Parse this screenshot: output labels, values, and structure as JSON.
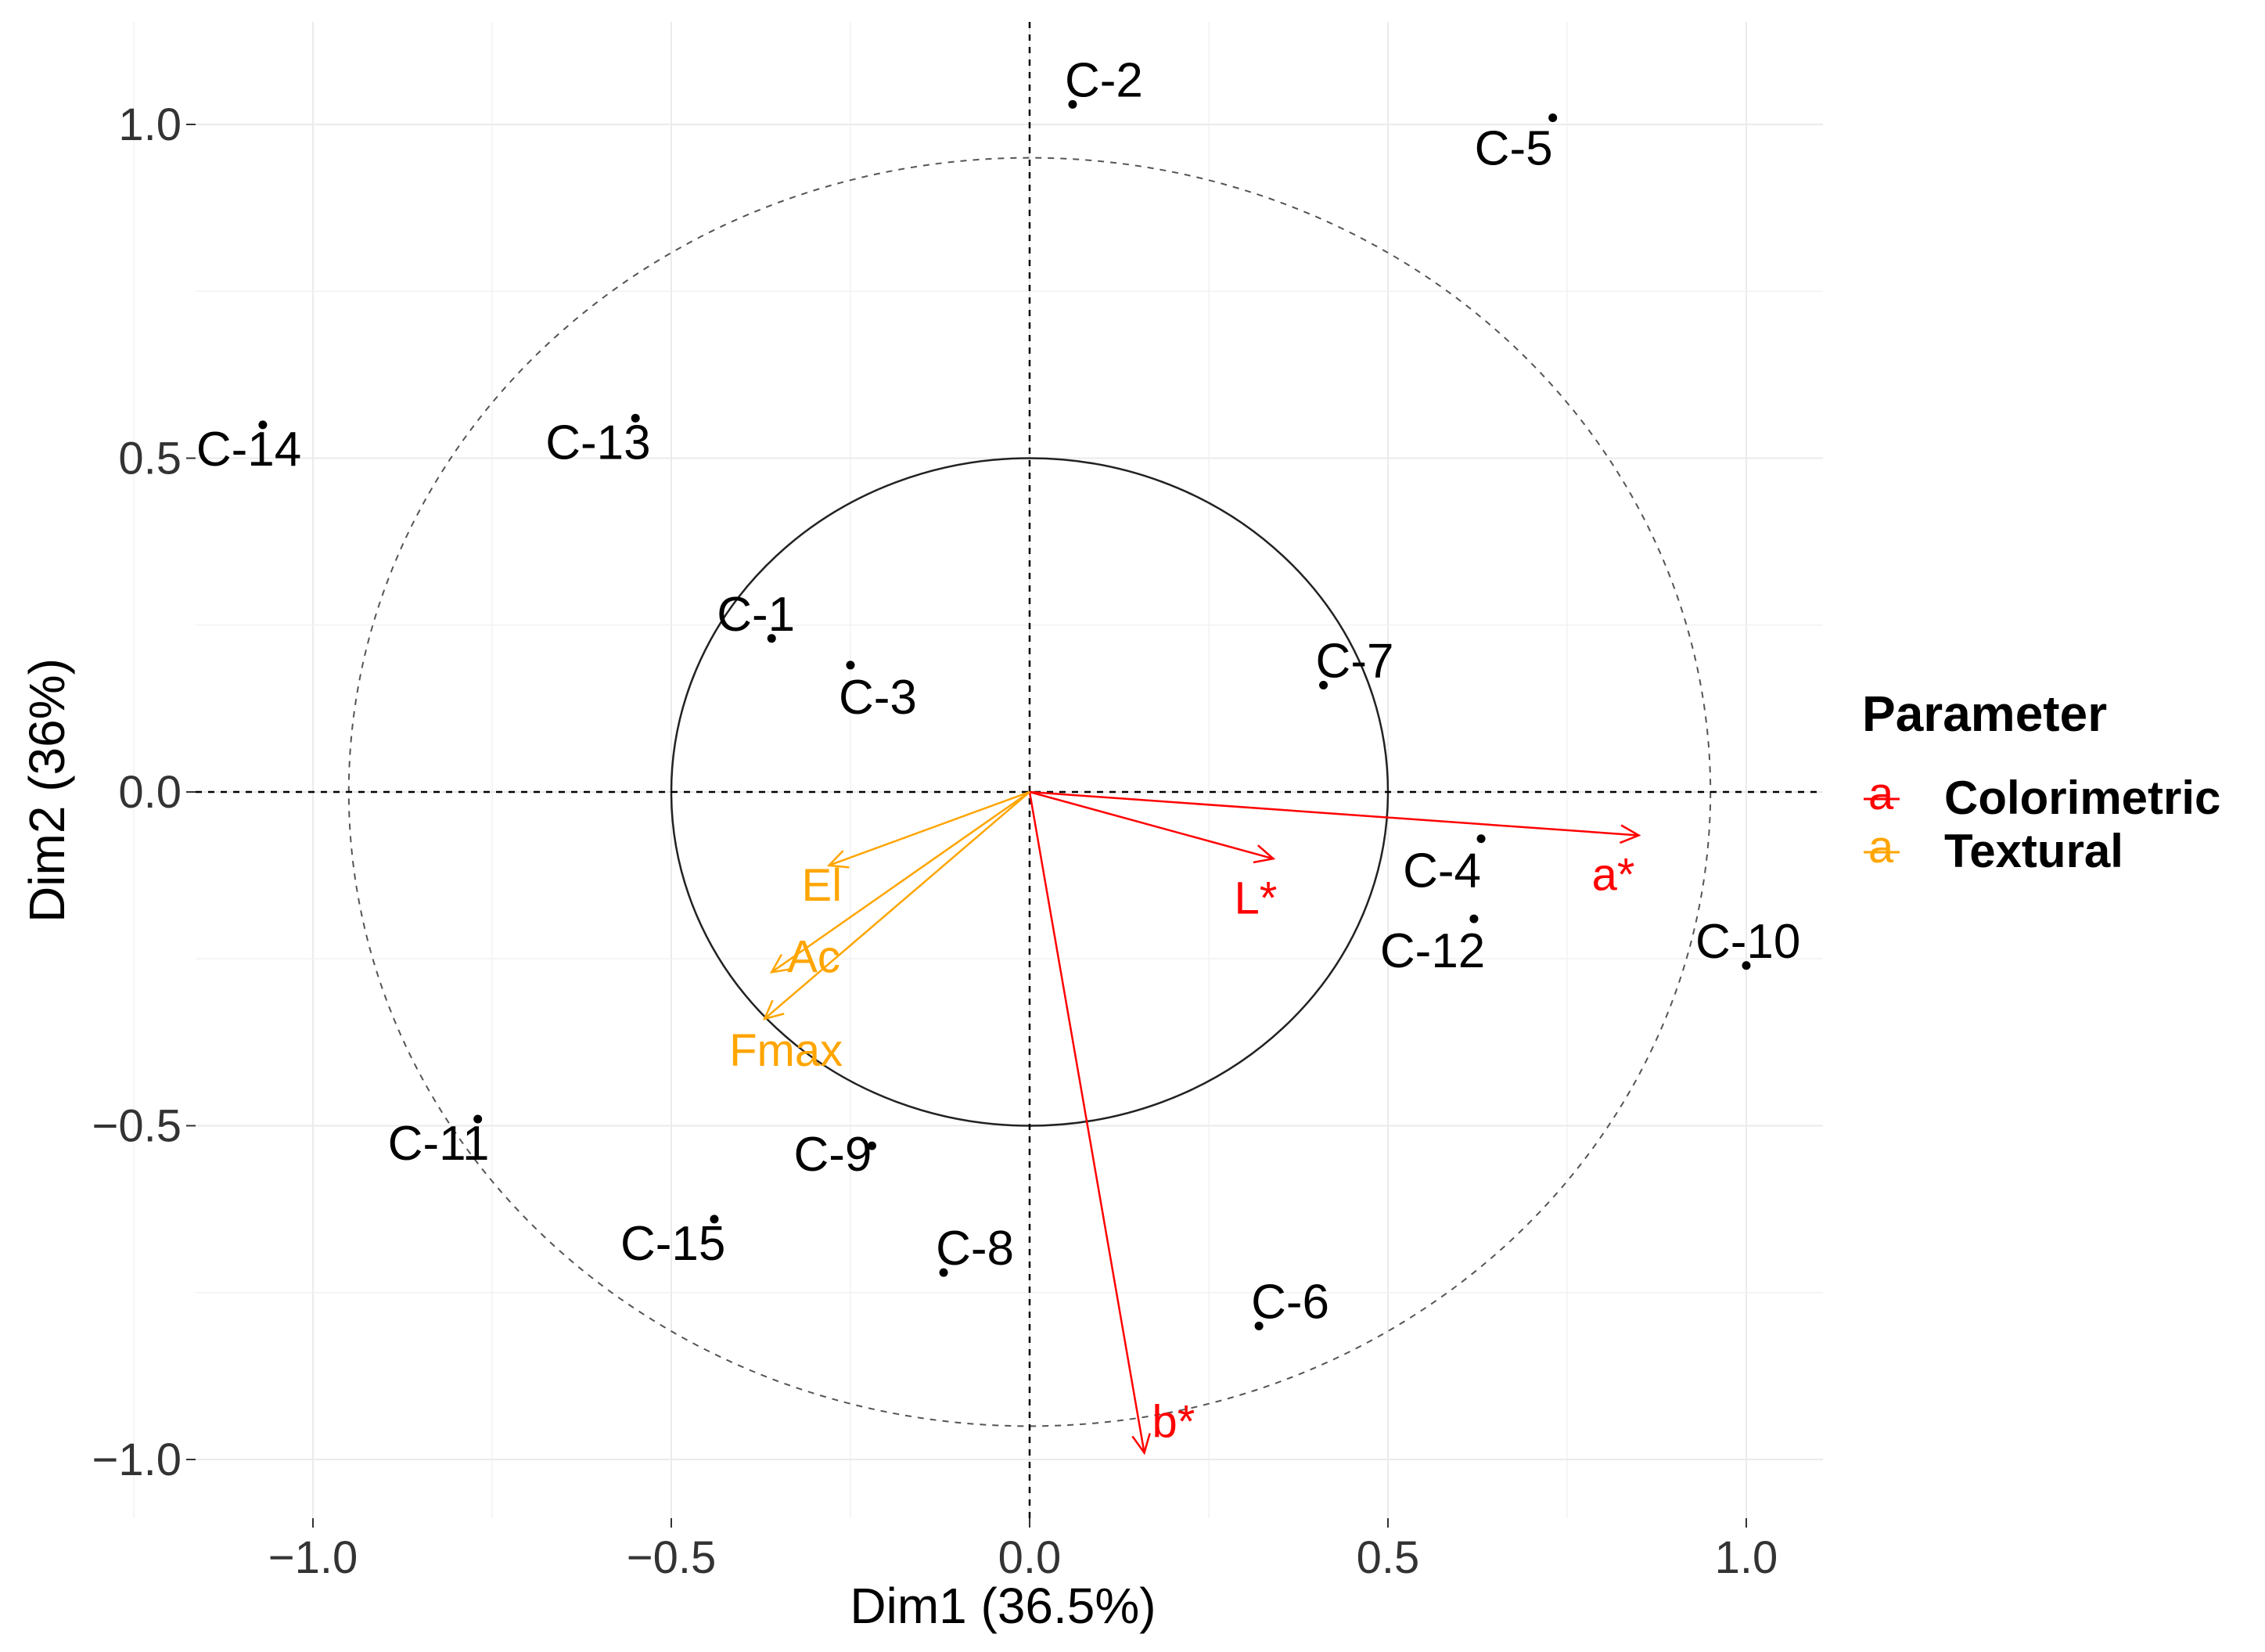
{
  "chart_data": {
    "type": "scatter",
    "title": "",
    "xlabel": "Dim1 (36.5%)",
    "ylabel": "Dim2 (36%)",
    "xlim": [
      -1.15,
      1.11
    ],
    "ylim": [
      -1.1,
      1.18
    ],
    "xticks": [
      -1.0,
      -0.5,
      0.0,
      0.5,
      1.0
    ],
    "xtick_labels": [
      "−1.0",
      "−0.5",
      "0.0",
      "0.5",
      "1.0"
    ],
    "yticks": [
      -1.0,
      -0.5,
      0.0,
      0.5,
      1.0
    ],
    "ytick_labels": [
      "−1.0",
      "−0.5",
      "0.0",
      "0.5",
      "1.0"
    ],
    "grid": true,
    "reference_lines": {
      "x": 0,
      "y": 0,
      "style": "dashed"
    },
    "circles": [
      {
        "radius": 0.5,
        "style": "solid"
      },
      {
        "radius": 0.95,
        "style": "dashed"
      }
    ],
    "points": [
      {
        "label": "C-1",
        "x": -0.36,
        "y": 0.23
      },
      {
        "label": "C-2",
        "x": 0.06,
        "y": 1.03
      },
      {
        "label": "C-3",
        "x": -0.25,
        "y": 0.19
      },
      {
        "label": "C-4",
        "x": 0.63,
        "y": -0.07
      },
      {
        "label": "C-5",
        "x": 0.73,
        "y": 1.01
      },
      {
        "label": "C-6",
        "x": 0.32,
        "y": -0.8
      },
      {
        "label": "C-7",
        "x": 0.41,
        "y": 0.16
      },
      {
        "label": "C-8",
        "x": -0.12,
        "y": -0.72
      },
      {
        "label": "C-9",
        "x": -0.22,
        "y": -0.53
      },
      {
        "label": "C-10",
        "x": 1.0,
        "y": -0.26
      },
      {
        "label": "C-11",
        "x": -0.77,
        "y": -0.49
      },
      {
        "label": "C-12",
        "x": 0.62,
        "y": -0.19
      },
      {
        "label": "C-13",
        "x": -0.55,
        "y": 0.56
      },
      {
        "label": "C-14",
        "x": -1.07,
        "y": 0.55
      },
      {
        "label": "C-15",
        "x": -0.44,
        "y": -0.64
      }
    ],
    "arrows": [
      {
        "label": "L*",
        "x": 0.34,
        "y": -0.1,
        "group": "Colorimetric"
      },
      {
        "label": "a*",
        "x": 0.85,
        "y": -0.065,
        "group": "Colorimetric"
      },
      {
        "label": "b*",
        "x": 0.16,
        "y": -0.99,
        "group": "Colorimetric"
      },
      {
        "label": "El",
        "x": -0.28,
        "y": -0.11,
        "group": "Textural"
      },
      {
        "label": "Ac",
        "x": -0.36,
        "y": -0.27,
        "group": "Textural"
      },
      {
        "label": "Fmax",
        "x": -0.37,
        "y": -0.34,
        "group": "Textural"
      }
    ],
    "legend": {
      "title": "Parameter",
      "placement": "right",
      "items": [
        {
          "label": "Colorimetric",
          "color": "#ff0000",
          "key_glyph": "a"
        },
        {
          "label": "Textural",
          "color": "#ffa500",
          "key_glyph": "a"
        }
      ]
    }
  }
}
